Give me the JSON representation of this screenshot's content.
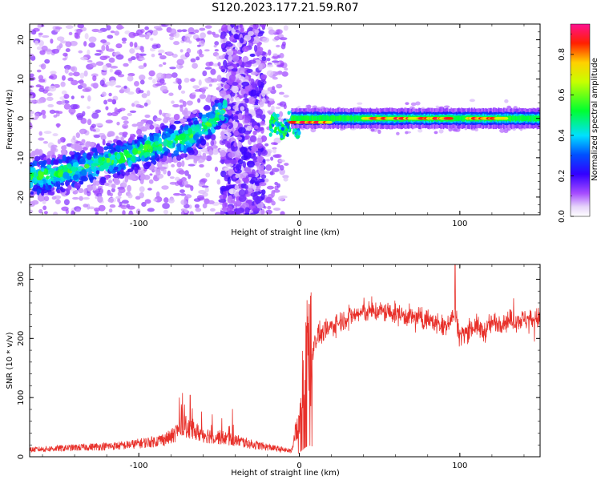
{
  "figure_title": "S120.2023.177.21.59.R07",
  "colors": {
    "signal_line": "#e8302a",
    "frame": "#000000",
    "background": "#ffffff"
  },
  "chart_data": [
    {
      "type": "heatmap",
      "xlabel": "Height of straight line (km)",
      "ylabel": "Frequency (Hz)",
      "xlim": [
        -168,
        150
      ],
      "ylim": [
        -24.5,
        24
      ],
      "xticks": [
        -100,
        0,
        100
      ],
      "yticks": [
        -20,
        -10,
        0,
        10,
        20
      ],
      "colorbar": {
        "label": "Normalized spectral amplitude",
        "range": [
          0,
          0.95
        ],
        "ticks": [
          "0.0",
          "0.2",
          "0.4",
          "0.6",
          "0.8"
        ],
        "tick_values": [
          0.0,
          0.2,
          0.4,
          0.6,
          0.8
        ],
        "colormap": [
          "#ffffff",
          "#e6d4fa",
          "#7b00e0",
          "#0000ff",
          "#00d8ff",
          "#00ff20",
          "#ffff00",
          "#ff0000",
          "#ff1090"
        ]
      },
      "features": {
        "rising_track": [
          {
            "x": -168,
            "y": -15
          },
          {
            "x": -150,
            "y": -14
          },
          {
            "x": -130,
            "y": -12
          },
          {
            "x": -110,
            "y": -10
          },
          {
            "x": -90,
            "y": -7
          },
          {
            "x": -70,
            "y": -5
          },
          {
            "x": -55,
            "y": -1
          },
          {
            "x": -45,
            "y": 3
          }
        ],
        "constant_line": {
          "x_start": -5,
          "x_end": 150,
          "y": 0
        },
        "high_amplitude_segments": [
          {
            "x_start": -5,
            "x_end": 20,
            "y": -1
          },
          {
            "x_start": 40,
            "x_end": 95,
            "y": 0
          },
          {
            "x_start": 105,
            "x_end": 130,
            "y": 0
          }
        ]
      }
    },
    {
      "type": "line",
      "xlabel": "Height of straight line (km)",
      "ylabel": "SNR (10 * v/v)",
      "xlim": [
        -168,
        150
      ],
      "ylim": [
        0,
        325
      ],
      "xticks": [
        -100,
        0,
        100
      ],
      "yticks": [
        0,
        100,
        200,
        300
      ],
      "series": [
        {
          "x": [
            -168,
            -150,
            -130,
            -110,
            -90,
            -80,
            -72,
            -68,
            -60,
            -50,
            -40,
            -30,
            -20,
            -10,
            -5,
            -2,
            0,
            2,
            4,
            6,
            8,
            10,
            15,
            20,
            30,
            40,
            50,
            60,
            70,
            80,
            90,
            96,
            97,
            100,
            110,
            115,
            120,
            130,
            140,
            150
          ],
          "values": [
            10,
            12,
            14,
            16,
            22,
            28,
            45,
            38,
            32,
            28,
            24,
            18,
            14,
            10,
            8,
            40,
            60,
            120,
            160,
            190,
            175,
            200,
            210,
            220,
            236,
            244,
            246,
            242,
            236,
            232,
            220,
            238,
            242,
            205,
            222,
            210,
            226,
            230,
            232,
            234
          ]
        }
      ],
      "annotations": {
        "peak": {
          "x": 97,
          "y": 325
        },
        "early_burst_peak": {
          "x": -68,
          "y": 104
        }
      }
    }
  ]
}
